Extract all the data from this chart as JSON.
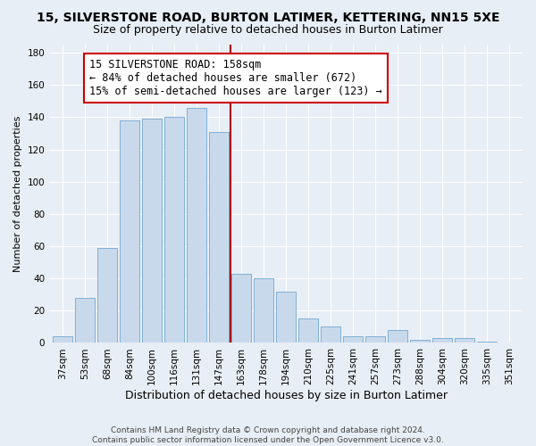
{
  "title": "15, SILVERSTONE ROAD, BURTON LATIMER, KETTERING, NN15 5XE",
  "subtitle": "Size of property relative to detached houses in Burton Latimer",
  "xlabel": "Distribution of detached houses by size in Burton Latimer",
  "ylabel": "Number of detached properties",
  "categories": [
    "37sqm",
    "53sqm",
    "68sqm",
    "84sqm",
    "100sqm",
    "116sqm",
    "131sqm",
    "147sqm",
    "163sqm",
    "178sqm",
    "194sqm",
    "210sqm",
    "225sqm",
    "241sqm",
    "257sqm",
    "273sqm",
    "288sqm",
    "304sqm",
    "320sqm",
    "335sqm",
    "351sqm"
  ],
  "values": [
    4,
    28,
    59,
    138,
    139,
    140,
    146,
    131,
    43,
    40,
    32,
    15,
    10,
    4,
    4,
    8,
    2,
    3,
    3,
    1,
    0
  ],
  "bar_color": "#c9d9ec",
  "bar_edge_color": "#6fa8d0",
  "vline_color": "#aa0000",
  "annotation_text": "15 SILVERSTONE ROAD: 158sqm\n← 84% of detached houses are smaller (672)\n15% of semi-detached houses are larger (123) →",
  "annotation_box_color": "#ffffff",
  "annotation_box_edge_color": "#cc0000",
  "ylim": [
    0,
    185
  ],
  "yticks": [
    0,
    20,
    40,
    60,
    80,
    100,
    120,
    140,
    160,
    180
  ],
  "background_color": "#e8eef5",
  "grid_color": "#ffffff",
  "footnote": "Contains HM Land Registry data © Crown copyright and database right 2024.\nContains public sector information licensed under the Open Government Licence v3.0.",
  "title_fontsize": 10,
  "subtitle_fontsize": 9,
  "xlabel_fontsize": 9,
  "ylabel_fontsize": 8,
  "tick_fontsize": 7.5,
  "annot_fontsize": 8.5,
  "footnote_fontsize": 6.5
}
